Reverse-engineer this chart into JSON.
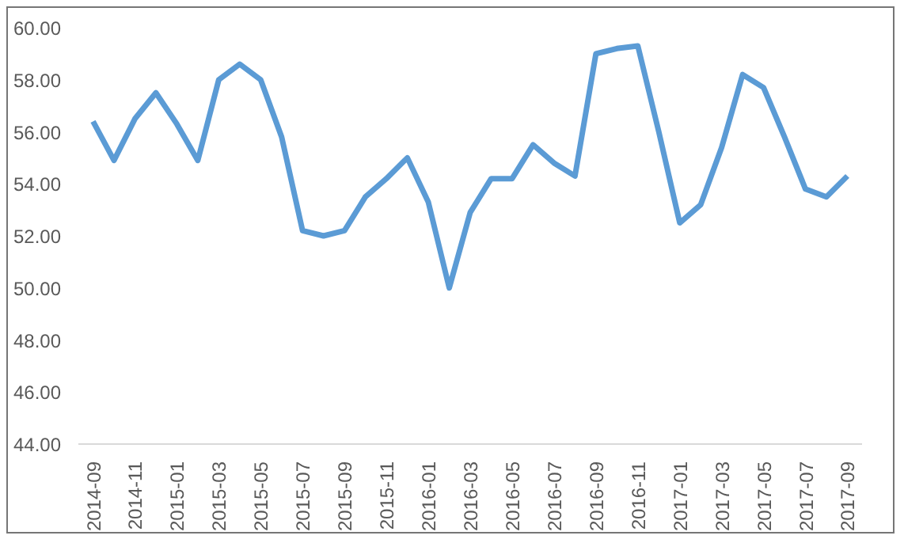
{
  "chart_data": {
    "type": "line",
    "categories": [
      "2014-09",
      null,
      "2014-11",
      null,
      "2015-01",
      null,
      "2015-03",
      null,
      "2015-05",
      null,
      "2015-07",
      null,
      "2015-09",
      null,
      "2015-11",
      null,
      "2016-01",
      null,
      "2016-03",
      null,
      "2016-05",
      null,
      "2016-07",
      null,
      "2016-09",
      null,
      "2016-11",
      null,
      "2017-01",
      null,
      "2017-03",
      null,
      "2017-05",
      null,
      "2017-07",
      null,
      "2017-09"
    ],
    "series": [
      {
        "color": "#5b9bd5",
        "values": [
          56.4,
          54.9,
          56.5,
          57.5,
          56.3,
          54.9,
          58.0,
          58.6,
          58.0,
          55.8,
          52.2,
          52.0,
          52.2,
          53.5,
          54.2,
          55.0,
          53.3,
          50.0,
          52.9,
          54.2,
          54.2,
          55.5,
          54.8,
          54.3,
          59.0,
          59.2,
          59.3,
          56.0,
          52.5,
          53.2,
          55.4,
          58.2,
          57.7,
          55.8,
          53.8,
          53.5,
          54.3
        ]
      }
    ],
    "ylim": [
      44,
      60
    ],
    "yticks": [
      {
        "value": 44,
        "label": "44.00"
      },
      {
        "value": 46,
        "label": "46.00"
      },
      {
        "value": 48,
        "label": "48.00"
      },
      {
        "value": 50,
        "label": "50.00"
      },
      {
        "value": 52,
        "label": "52.00"
      },
      {
        "value": 54,
        "label": "54.00"
      },
      {
        "value": 56,
        "label": "56.00"
      },
      {
        "value": 58,
        "label": "58.00"
      },
      {
        "value": 60,
        "label": "60.00"
      }
    ],
    "grid": false,
    "marker": "none",
    "line_style": "solid"
  }
}
